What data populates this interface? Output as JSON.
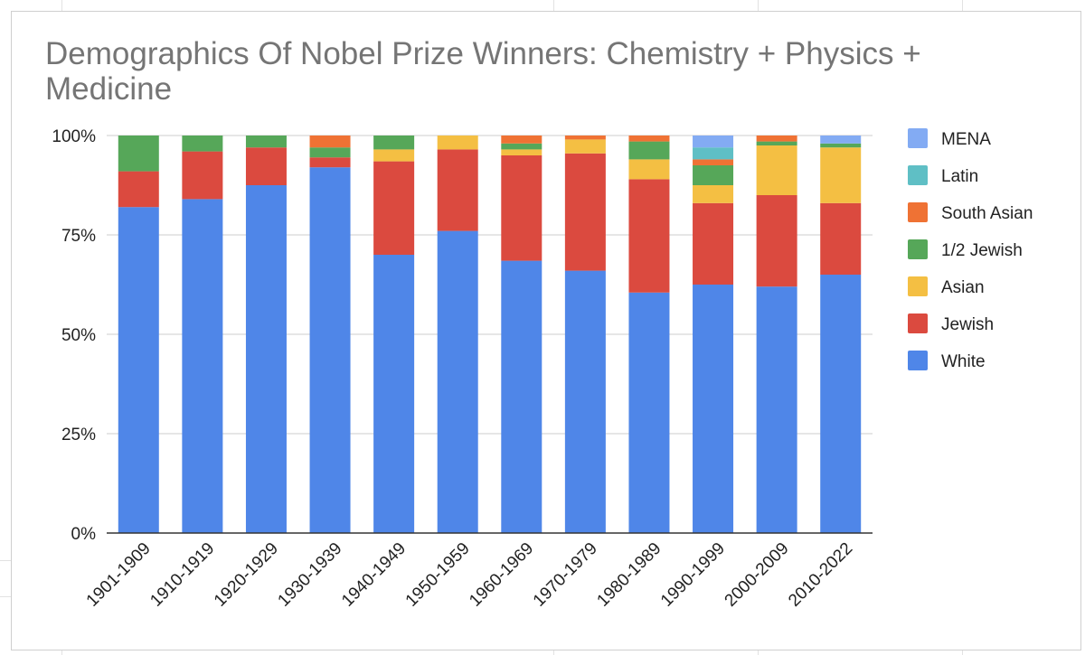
{
  "chart_data": {
    "type": "bar",
    "stacked": true,
    "normalized": true,
    "title": "Demographics Of Nobel Prize Winners: Chemistry + Physics + Medicine",
    "title_lines": [
      "Demographics Of Nobel Prize Winners: Chemistry + Physics +",
      "Medicine"
    ],
    "xlabel": "",
    "ylabel": "",
    "ylim": [
      0,
      100
    ],
    "yticks": [
      "0%",
      "25%",
      "50%",
      "75%",
      "100%"
    ],
    "grid": true,
    "legend_position": "right",
    "categories": [
      "1901-1909",
      "1910-1919",
      "1920-1929",
      "1930-1939",
      "1940-1949",
      "1950-1959",
      "1960-1969",
      "1970-1979",
      "1980-1989",
      "1990-1999",
      "2000-2009",
      "2010-2022"
    ],
    "series": [
      {
        "name": "White",
        "color": "#4f86e8",
        "values": [
          82,
          84,
          87.5,
          92,
          70,
          76,
          68.5,
          66,
          60.5,
          62.5,
          62,
          65
        ]
      },
      {
        "name": "Jewish",
        "color": "#db4a3f",
        "values": [
          9,
          12,
          9.5,
          2.5,
          23.5,
          20.5,
          26.5,
          29.5,
          28.5,
          20.5,
          23,
          18
        ]
      },
      {
        "name": "Asian",
        "color": "#f4bf43",
        "values": [
          0,
          0,
          0,
          0,
          3,
          3.5,
          1.5,
          3.5,
          5,
          4.5,
          12.5,
          14
        ]
      },
      {
        "name": "1/2 Jewish",
        "color": "#56a759",
        "values": [
          9,
          4,
          3,
          2.5,
          3.5,
          0,
          1.5,
          0,
          4.5,
          5,
          1,
          1
        ]
      },
      {
        "name": "South Asian",
        "color": "#ef7234",
        "values": [
          0,
          0,
          0,
          3,
          0,
          0,
          2,
          1,
          1.5,
          1.5,
          1.5,
          0
        ]
      },
      {
        "name": "Latin",
        "color": "#5fbfc5",
        "values": [
          0,
          0,
          0,
          0,
          0,
          0,
          0,
          0,
          0,
          3,
          0,
          0
        ]
      },
      {
        "name": "MENA",
        "color": "#83abf3",
        "values": [
          0,
          0,
          0,
          0,
          0,
          0,
          0,
          0,
          0,
          3,
          0,
          2
        ]
      }
    ],
    "legend_order": [
      "MENA",
      "Latin",
      "South Asian",
      "1/2 Jewish",
      "Asian",
      "Jewish",
      "White"
    ]
  }
}
